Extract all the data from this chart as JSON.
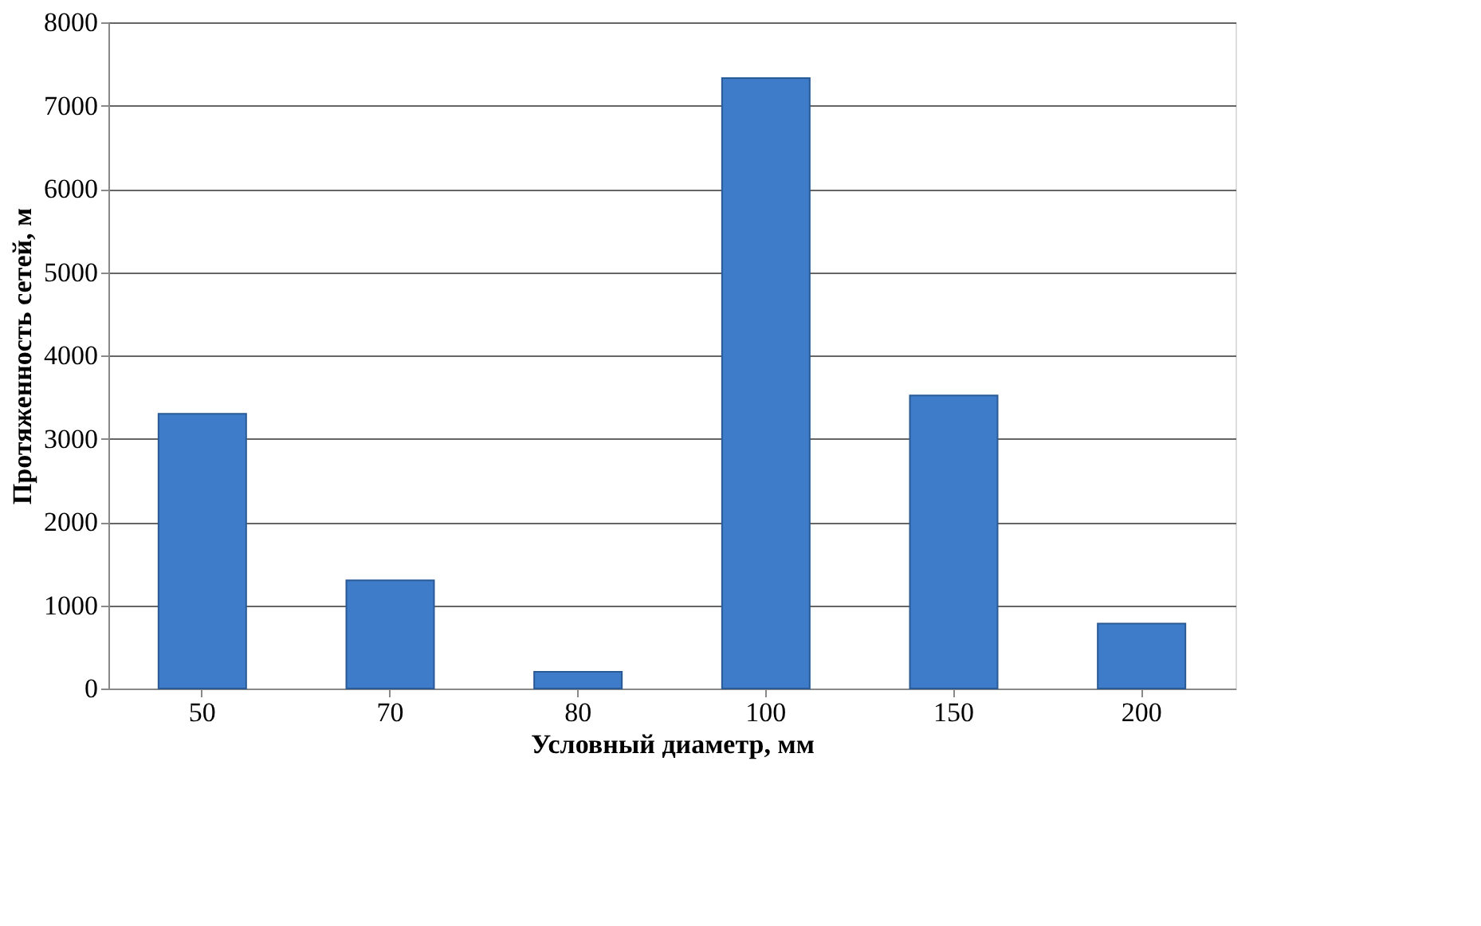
{
  "chart_data": {
    "type": "bar",
    "xlabel": "Условный диаметр, мм",
    "ylabel": "Протяженность сетей, м",
    "categories": [
      "50",
      "70",
      "80",
      "100",
      "150",
      "200"
    ],
    "values": [
      3300,
      1300,
      200,
      7330,
      3520,
      780
    ],
    "color": "#3e7cc9",
    "ylim": [
      0,
      8000
    ],
    "yticks": [
      0,
      1000,
      2000,
      3000,
      4000,
      5000,
      6000,
      7000,
      8000
    ],
    "grid": "y"
  }
}
